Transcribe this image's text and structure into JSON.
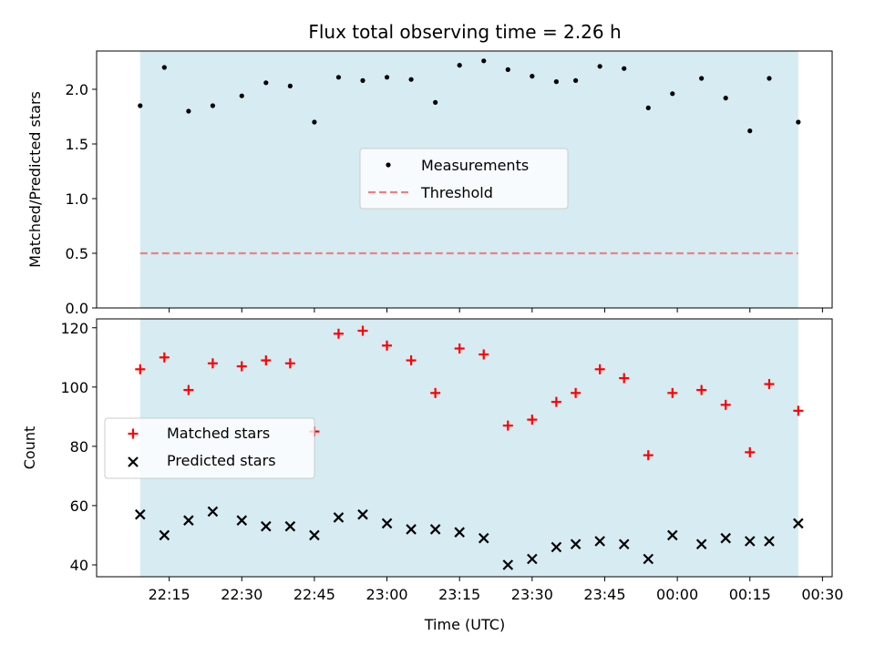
{
  "colors": {
    "observing_window": "#add8e6",
    "measurements": "#000000",
    "threshold": "#f08080",
    "matched": "#ff0000",
    "predicted": "#000000"
  },
  "chart_data": [
    {
      "type": "scatter",
      "panel": "top",
      "title": "Flux total observing time = 2.26 h",
      "xlabel": "",
      "ylabel": "Matched/Predicted stars",
      "ylim": [
        0,
        2.35
      ],
      "yticks": [
        "0.0",
        "0.5",
        "1.0",
        "1.5",
        "2.0"
      ],
      "legend_position": "center",
      "observing_window": [
        "22:09",
        "00:25"
      ],
      "threshold": {
        "name": "Threshold",
        "value": 0.5
      },
      "series": [
        {
          "name": "Measurements",
          "x": [
            "22:09",
            "22:14",
            "22:19",
            "22:24",
            "22:30",
            "22:35",
            "22:40",
            "22:45",
            "22:50",
            "22:55",
            "23:00",
            "23:05",
            "23:10",
            "23:15",
            "23:20",
            "23:25",
            "23:30",
            "23:35",
            "23:39",
            "23:44",
            "23:49",
            "23:54",
            "23:59",
            "00:05",
            "00:10",
            "00:15",
            "00:19",
            "00:25"
          ],
          "values": [
            1.85,
            2.2,
            1.8,
            1.85,
            1.94,
            2.06,
            2.03,
            1.7,
            2.11,
            2.08,
            2.11,
            2.09,
            1.88,
            2.22,
            2.26,
            2.18,
            2.12,
            2.07,
            2.08,
            2.21,
            2.19,
            1.83,
            1.96,
            2.1,
            1.92,
            1.62,
            2.1,
            1.7
          ]
        }
      ]
    },
    {
      "type": "scatter",
      "panel": "bottom",
      "xlabel": "Time (UTC)",
      "ylabel": "Count",
      "ylim": [
        36,
        123
      ],
      "yticks": [
        "40",
        "60",
        "80",
        "100",
        "120"
      ],
      "xlim": [
        "22:00",
        "00:32"
      ],
      "xticks": [
        "22:15",
        "22:30",
        "22:45",
        "23:00",
        "23:15",
        "23:30",
        "23:45",
        "00:00",
        "00:15",
        "00:30"
      ],
      "legend_position": "center-left",
      "observing_window": [
        "22:09",
        "00:25"
      ],
      "series": [
        {
          "name": "Matched stars",
          "x": [
            "22:09",
            "22:14",
            "22:19",
            "22:24",
            "22:30",
            "22:35",
            "22:40",
            "22:45",
            "22:50",
            "22:55",
            "23:00",
            "23:05",
            "23:10",
            "23:15",
            "23:20",
            "23:25",
            "23:30",
            "23:35",
            "23:39",
            "23:44",
            "23:49",
            "23:54",
            "23:59",
            "00:05",
            "00:10",
            "00:15",
            "00:19",
            "00:25"
          ],
          "values": [
            106,
            110,
            99,
            108,
            107,
            109,
            108,
            85,
            118,
            119,
            114,
            109,
            98,
            113,
            111,
            87,
            89,
            95,
            98,
            106,
            103,
            77,
            98,
            99,
            94,
            78,
            101,
            92
          ]
        },
        {
          "name": "Predicted stars",
          "x": [
            "22:09",
            "22:14",
            "22:19",
            "22:24",
            "22:30",
            "22:35",
            "22:40",
            "22:45",
            "22:50",
            "22:55",
            "23:00",
            "23:05",
            "23:10",
            "23:15",
            "23:20",
            "23:25",
            "23:30",
            "23:35",
            "23:39",
            "23:44",
            "23:49",
            "23:54",
            "23:59",
            "00:05",
            "00:10",
            "00:15",
            "00:19",
            "00:25"
          ],
          "values": [
            57,
            50,
            55,
            58,
            55,
            53,
            53,
            50,
            56,
            57,
            54,
            52,
            52,
            51,
            49,
            40,
            42,
            46,
            47,
            48,
            47,
            42,
            50,
            47,
            49,
            48,
            48,
            54
          ]
        }
      ]
    }
  ]
}
